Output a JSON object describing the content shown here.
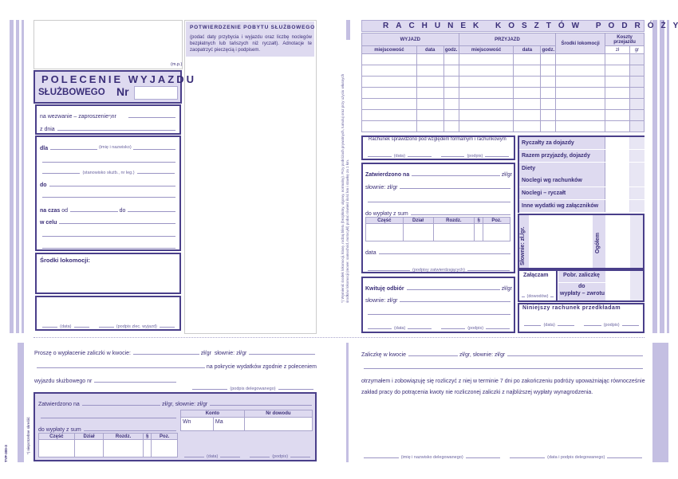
{
  "colors": {
    "ink": "#3a2e78",
    "border": "#4a3f8a",
    "fill": "#dedaf0",
    "stripe": "#c4bfe2"
  },
  "left": {
    "mp": "(m.p.)",
    "title_line1": "POLECENIE WYJAZDU",
    "title_line2": "SŁUŻBOWEGO",
    "nr": "Nr",
    "na_wezwanie": "na wezwanie – zaproszenie",
    "footnote_mark": "*)",
    "nr_label": "nr",
    "z_dnia": "z dnia",
    "dla": "dla",
    "imie_nazwisko": "(imię i nazwisko)",
    "stanowisko": "(stanowisko służb., nr leg.)",
    "do": "do",
    "na_czas": "na czas",
    "od": "od",
    "do2": "do",
    "w_celu": "w celu",
    "srodki": "Środki lokomocji:",
    "data": "(data)",
    "podpis_zlec": "(podpis zlec. wyjazd)"
  },
  "confirm": {
    "title": "POTWIERDZENIE POBYTU SŁUŻBOWEGO",
    "text": "(podać daty przybycia i wyjazdu oraz liczbę noclegów bezpłatnych lub tańszych niż ryczałt). Adnotacje te zaopatrzyć pieczęcią i podpisem."
  },
  "bill": {
    "title": "RACHUNEK KOSZTÓW PODRÓŻY",
    "wyjazd": "WYJAZD",
    "przyjazd": "PRZYJAZD",
    "miejscowosc": "miejscowość",
    "data": "data",
    "godz": "godz.",
    "srodki": "Środki lokomocji",
    "koszty": "Koszty przejazdu",
    "zl": "zł",
    "gr": "gr",
    "footnote": "*) Wymienić środek lokomocji, klasę, rodzaj biletu (bezpłatny, ulgowy, normalny). Przy podróżach prywatnych, tumuluj oraz przy użyciu własnych środków lokomocji (mowe: samochód, motocykl) podać również ilość km i stawkę za 1 km.",
    "sprawdzono": "Rachunek sprawdzono pod względem formalnym i rachunkowym",
    "data_l": "(data)",
    "podpis_l": "(podpis)",
    "zatwierdzono": "Zatwierdzono na",
    "zlgr": "zł/gr",
    "slownie": "słownie: zł/gr",
    "do_wyplaty": "do wypłaty z sum",
    "cols": [
      "Część",
      "Dział",
      "Rozdz.",
      "§",
      "Poz."
    ],
    "data2": "data",
    "podpisy_zatw": "(podpisy zatwierdzających)",
    "kwituje": "Kwituję odbiór",
    "summary": [
      "Ryczałty za dojazdy",
      "Razem przyjazdy, dojazdy",
      "Diety",
      "Noclegi wg rachunków",
      "Noclegi – ryczałt",
      "Inne wydatki wg załączników"
    ],
    "slownie_v": "Słownie: zł./gr.",
    "ogolem": "Ogółem",
    "zalaczam": "Załączam",
    "dowodow": "(dowodów)",
    "pobr": "Pobr. zaliczkę",
    "do_wyplaty_zwrotu_1": "do",
    "do_wyplaty_zwrotu_2": "wypłaty – zwrotu",
    "niniejszy": "Niniejszy rachunek przedkładam"
  },
  "advance": {
    "prosze": "Proszę o wypłacenie zaliczki w kwocie:",
    "zlgr": "zł/gr",
    "slownie": "słownie: zł/gr",
    "pokrycie": "na pokrycie wydatków zgodnie z poleceniem",
    "wyjazdu": "wyjazdu służbowego nr",
    "podpis_del": "(podpis delegowanego)",
    "zatwierdzono": "Zatwierdzono na",
    "zlgr2": "zł/gr, słownie: zł/gr",
    "konto": "Konto",
    "nr_dowodu": "Nr dowodu",
    "wn": "Wn",
    "ma": "Ma",
    "do_wyplaty": "do wypłaty z sum",
    "cols": [
      "Część",
      "Dział",
      "Rozdz.",
      "§",
      "Poz."
    ],
    "data": "(data)",
    "podpis": "(podpis)",
    "side_code": "TYP-300-3",
    "side_note": "*) niepotrzebne skreślić"
  },
  "receipt": {
    "zaliczke": "Zaliczkę w kwocie",
    "zlgr": "zł/gr,  słownie: zł/gr",
    "text1": "otrzymałem i zobowiązuję się rozliczyć z niej w terminie 7 dni po zakończeniu podróży upoważniając równocześnie",
    "text2": "zakład pracy do potrącenia kwoty nie rozliczonej zaliczki z najbliższej wypłaty wynagrodzenia.",
    "imie": "(imię i nazwisko delegowanego)",
    "data_podpis": "(data i podpis delegowanego)"
  }
}
